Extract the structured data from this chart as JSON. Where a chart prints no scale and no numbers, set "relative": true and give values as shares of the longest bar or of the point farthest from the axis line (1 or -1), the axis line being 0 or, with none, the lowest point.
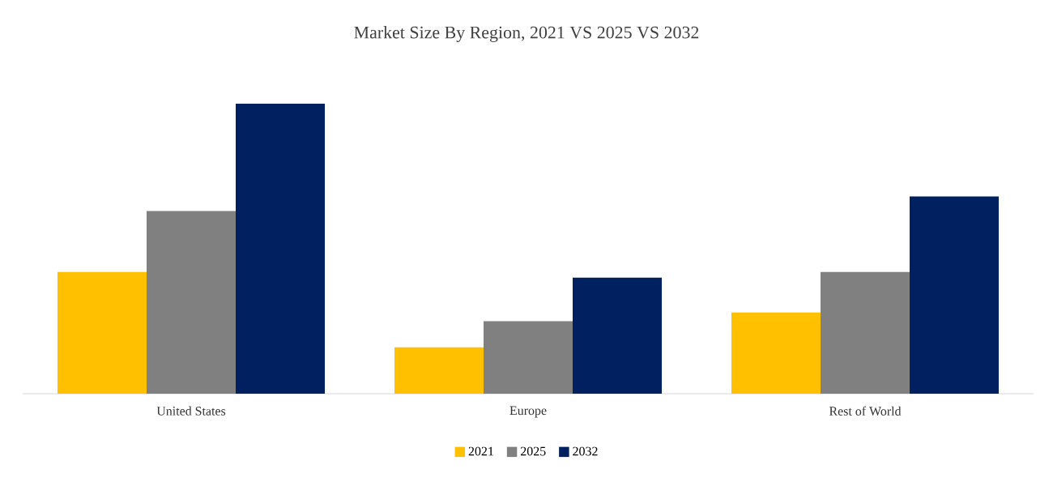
{
  "chart_data": {
    "type": "bar",
    "title": "Market Size By Region, 2021 VS 2025 VS 2032",
    "relative": true,
    "legend": "bottom",
    "categories": [
      "United States",
      "Europe",
      "Rest of World"
    ],
    "series": [
      {
        "name": "2021",
        "color": "#ffc000",
        "values": [
          0.42,
          0.16,
          0.28
        ]
      },
      {
        "name": "2025",
        "color": "#808080",
        "values": [
          0.63,
          0.25,
          0.42
        ]
      },
      {
        "name": "2032",
        "color": "#002060",
        "values": [
          1,
          0.4,
          0.68
        ]
      }
    ]
  }
}
